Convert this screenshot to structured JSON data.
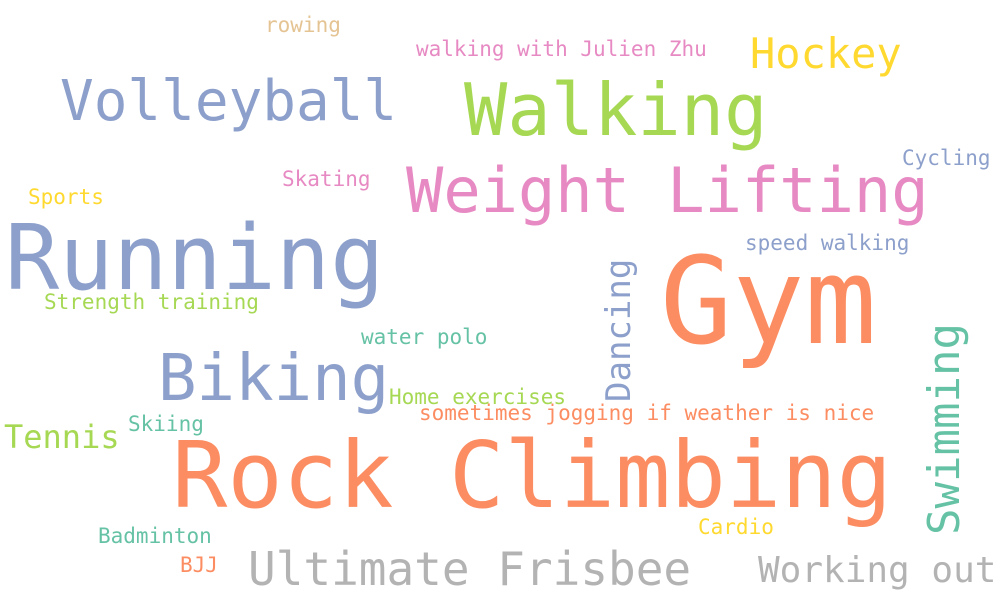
{
  "words": {
    "gym": "Gym",
    "rock_climbing": "Rock Climbing",
    "running": "Running",
    "walking": "Walking",
    "weight_lifting": "Weight Lifting",
    "volleyball": "Volleyball",
    "biking": "Biking",
    "ultimate_frisbee": "Ultimate Frisbee",
    "hockey": "Hockey",
    "swimming": "Swimming",
    "working_out": "Working out",
    "dancing": "Dancing",
    "tennis": "Tennis",
    "walking_with_julien_zhu": "walking with Julien Zhu",
    "sometimes_jogging": "sometimes jogging if weather is nice",
    "home_exercises": "Home exercises",
    "strength_training": "Strength training",
    "water_polo": "water polo",
    "speed_walking": "speed walking",
    "cycling": "Cycling",
    "skating": "Skating",
    "sports": "Sports",
    "rowing": "rowing",
    "skiing": "Skiing",
    "badminton": "Badminton",
    "cardio": "Cardio",
    "bjj": "BJJ"
  },
  "colors": {
    "orange": "#fc8d62",
    "blue": "#8da0cb",
    "pink": "#e78ac3",
    "green": "#a6d854",
    "yellow": "#ffd92f",
    "teal": "#66c2a5",
    "tan": "#e5c494",
    "gray": "#b3b3b3"
  }
}
